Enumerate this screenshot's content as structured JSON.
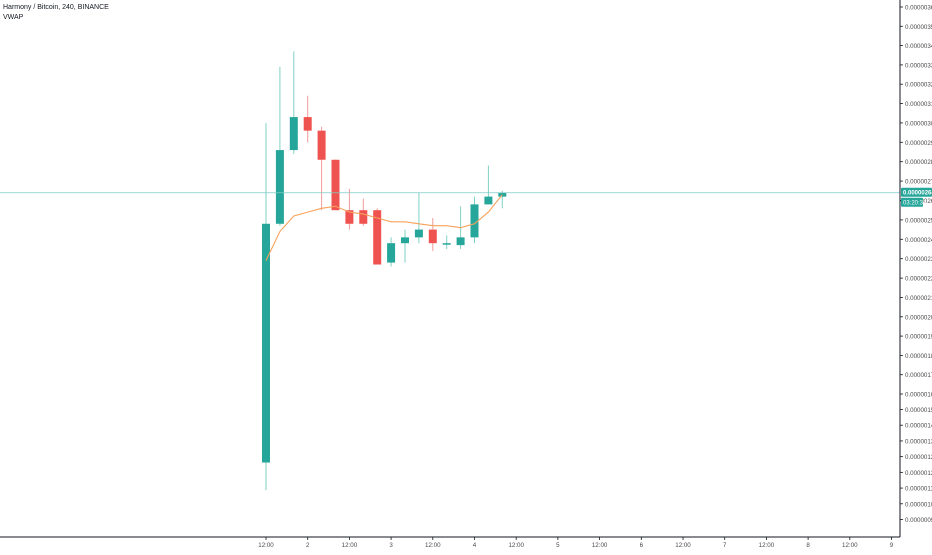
{
  "legend": {
    "title": "Harmony / Bitcoin, 240, BINANCE",
    "indicator": "VWAP"
  },
  "chart_data": {
    "type": "candlestick",
    "symbol": "Harmony / Bitcoin",
    "interval": "240",
    "exchange": "BINANCE",
    "ylim": [
      9e-07,
      3.65e-06
    ],
    "y_ticks": [
      "0.00000360",
      "0.00000350",
      "0.00000340",
      "0.00000330",
      "0.00000320",
      "0.00000310",
      "0.00000300",
      "0.00000290",
      "0.00000280",
      "0.00000270",
      "0.00000260",
      "0.00000250",
      "0.00000240",
      "0.00000230",
      "0.00000220",
      "0.00000210",
      "0.00000200",
      "0.00000190",
      "0.00000180",
      "0.00000170",
      "0.00000160",
      "0.00000152",
      "0.00000144",
      "0.00000136",
      "0.00000128",
      "0.00000120",
      "0.00000112",
      "0.00000104",
      "0.00000096"
    ],
    "x_ticks": [
      "12:00",
      "2",
      "12:00",
      "3",
      "12:00",
      "4",
      "12:00",
      "5",
      "12:00",
      "6",
      "12:00",
      "7",
      "12:00",
      "8",
      "12:00",
      "9"
    ],
    "candles": [
      {
        "open": 1.25e-06,
        "high": 3e-06,
        "low": 1.11e-06,
        "close": 2.48e-06
      },
      {
        "open": 2.48e-06,
        "high": 3.29e-06,
        "low": 2.47e-06,
        "close": 2.86e-06
      },
      {
        "open": 2.86e-06,
        "high": 3.37e-06,
        "low": 2.84e-06,
        "close": 3.03e-06
      },
      {
        "open": 3.03e-06,
        "high": 3.14e-06,
        "low": 2.9e-06,
        "close": 2.96e-06
      },
      {
        "open": 2.96e-06,
        "high": 2.98e-06,
        "low": 2.55e-06,
        "close": 2.81e-06
      },
      {
        "open": 2.81e-06,
        "high": 2.81e-06,
        "low": 2.56e-06,
        "close": 2.55e-06
      },
      {
        "open": 2.55e-06,
        "high": 2.66e-06,
        "low": 2.45e-06,
        "close": 2.48e-06
      },
      {
        "open": 2.55e-06,
        "high": 2.61e-06,
        "low": 2.47e-06,
        "close": 2.48e-06
      },
      {
        "open": 2.55e-06,
        "high": 2.56e-06,
        "low": 2.27e-06,
        "close": 2.27e-06
      },
      {
        "open": 2.28e-06,
        "high": 2.41e-06,
        "low": 2.26e-06,
        "close": 2.38e-06
      },
      {
        "open": 2.38e-06,
        "high": 2.45e-06,
        "low": 2.28e-06,
        "close": 2.41e-06
      },
      {
        "open": 2.41e-06,
        "high": 2.64e-06,
        "low": 2.38e-06,
        "close": 2.45e-06
      },
      {
        "open": 2.45e-06,
        "high": 2.51e-06,
        "low": 2.34e-06,
        "close": 2.38e-06
      },
      {
        "open": 2.38e-06,
        "high": 2.42e-06,
        "low": 2.35e-06,
        "close": 2.38e-06
      },
      {
        "open": 2.37e-06,
        "high": 2.57e-06,
        "low": 2.35e-06,
        "close": 2.41e-06
      },
      {
        "open": 2.41e-06,
        "high": 2.62e-06,
        "low": 2.38e-06,
        "close": 2.58e-06
      },
      {
        "open": 2.58e-06,
        "high": 2.78e-06,
        "low": 2.58e-06,
        "close": 2.62e-06
      },
      {
        "open": 2.62e-06,
        "high": 2.65e-06,
        "low": 2.56e-06,
        "close": 2.64e-06
      }
    ],
    "vwap": [
      2.29e-06,
      2.44e-06,
      2.52e-06,
      2.54e-06,
      2.56e-06,
      2.57e-06,
      2.54e-06,
      2.53e-06,
      2.51e-06,
      2.49e-06,
      2.49e-06,
      2.48e-06,
      2.47e-06,
      2.47e-06,
      2.46e-06,
      2.48e-06,
      2.54e-06,
      2.63e-06
    ],
    "last_price_label": "0.00000264",
    "countdown_label": "03:20:36",
    "colors": {
      "up": "#26a69a",
      "down": "#ef5350",
      "vwap": "#f7a25c",
      "price_line": "#7fccc4",
      "axis": "#131722",
      "tick_text": "#4a4a4a"
    }
  }
}
